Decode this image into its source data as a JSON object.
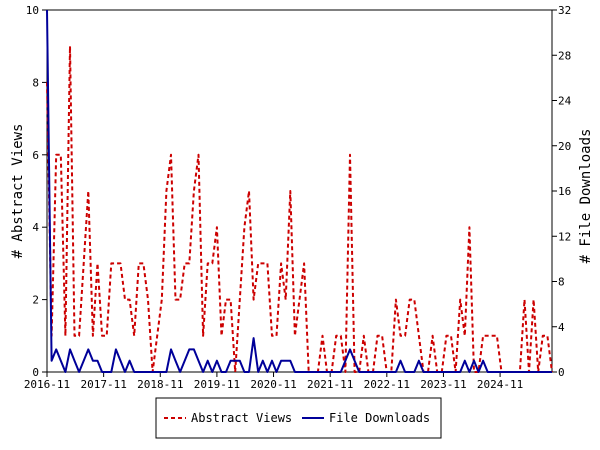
{
  "chart_data": {
    "type": "line",
    "ylabel_left": "# Abstract Views",
    "ylabel_right": "# File Downloads",
    "x_ticks": [
      "2016-11",
      "2017-11",
      "2018-11",
      "2019-11",
      "2020-11",
      "2021-11",
      "2022-11",
      "2023-11",
      "2024-11"
    ],
    "ylim_left": [
      0,
      10
    ],
    "y_ticks_left": [
      0,
      2,
      4,
      6,
      8,
      10
    ],
    "ylim_right": [
      0,
      32
    ],
    "y_ticks_right": [
      0,
      4,
      8,
      12,
      16,
      20,
      24,
      28,
      32
    ],
    "grid": false,
    "legend_position": "bottom-center",
    "x_start": "2016-11",
    "x_end": "2025-10",
    "series": [
      {
        "name": "Abstract Views",
        "axis": "left",
        "color": "#cc0000",
        "dash": "dashed",
        "values": [
          8,
          1,
          6,
          6,
          1,
          9,
          1,
          1,
          3,
          5,
          1,
          3,
          1,
          1,
          3,
          3,
          3,
          2,
          2,
          1,
          3,
          3,
          2,
          0,
          1,
          2,
          5,
          6,
          2,
          2,
          3,
          3,
          5,
          6,
          1,
          3,
          3,
          4,
          1,
          2,
          2,
          0,
          2,
          4,
          5,
          2,
          3,
          3,
          3,
          1,
          1,
          3,
          2,
          5,
          1,
          2,
          3,
          0,
          0,
          0,
          1,
          0,
          0,
          1,
          1,
          0,
          6,
          0,
          0,
          1,
          0,
          0,
          1,
          1,
          0,
          0,
          2,
          1,
          1,
          2,
          2,
          1,
          0,
          0,
          1,
          0,
          0,
          1,
          1,
          0,
          2,
          1,
          4,
          0,
          0,
          1,
          1,
          1,
          1,
          0,
          0,
          0,
          0,
          0,
          2,
          0,
          2,
          0,
          1,
          1,
          0
        ]
      },
      {
        "name": "File Downloads",
        "axis": "right",
        "color": "#000099",
        "dash": "solid",
        "values": [
          32,
          1,
          2,
          1,
          0,
          2,
          1,
          0,
          1,
          2,
          1,
          1,
          0,
          0,
          0,
          2,
          1,
          0,
          1,
          0,
          0,
          0,
          0,
          0,
          0,
          0,
          0,
          2,
          1,
          0,
          1,
          2,
          2,
          1,
          0,
          1,
          0,
          1,
          0,
          0,
          1,
          1,
          1,
          0,
          0,
          3,
          0,
          1,
          0,
          1,
          0,
          1,
          1,
          1,
          0,
          0,
          0,
          0,
          0,
          0,
          0,
          0,
          0,
          0,
          0,
          1,
          2,
          1,
          0,
          0,
          0,
          0,
          0,
          0,
          0,
          0,
          0,
          1,
          0,
          0,
          0,
          1,
          0,
          0,
          0,
          0,
          0,
          0,
          0,
          0,
          0,
          1,
          0,
          1,
          0,
          1,
          0,
          0,
          0,
          0,
          0,
          0,
          0,
          0,
          0,
          0,
          0,
          0,
          0,
          0,
          0
        ]
      }
    ]
  }
}
